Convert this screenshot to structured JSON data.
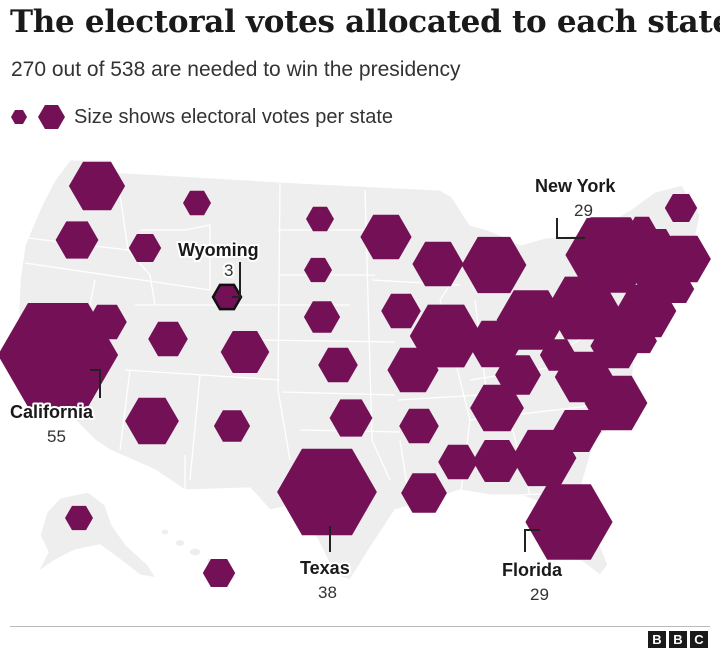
{
  "title": "The electoral votes allocated to each state",
  "subtitle": "270 out of 538 are needed to win the presidency",
  "legend": {
    "text": "Size shows electoral votes per state",
    "hex_color": "#741156",
    "outline_color": "#111111"
  },
  "map": {
    "land_color": "#eeeeee",
    "border_color": "#ffffff",
    "electoral_votes": {
      "WA": 12,
      "OR": 7,
      "CA": 55,
      "NV": 6,
      "ID": 4,
      "MT": 3,
      "WY": 3,
      "UT": 6,
      "AZ": 11,
      "CO": 9,
      "NM": 5,
      "TX": 38,
      "ND": 3,
      "SD": 3,
      "NE": 5,
      "KS": 6,
      "OK": 7,
      "MN": 10,
      "IA": 6,
      "MO": 10,
      "AR": 6,
      "LA": 8,
      "WI": 10,
      "IL": 20,
      "MS": 6,
      "MI": 16,
      "IN": 11,
      "KY": 8,
      "TN": 11,
      "AL": 9,
      "OH": 18,
      "WV": 5,
      "GA": 16,
      "FL": 29,
      "SC": 9,
      "NC": 15,
      "VA": 13,
      "PA": 20,
      "NY": 29,
      "ME": 4,
      "NH": 4,
      "VT": 3,
      "MA": 11,
      "RI": 4,
      "CT": 7,
      "NJ": 14,
      "DE": 3,
      "MD": 10,
      "DC": 3,
      "AK": 3,
      "HI": 4
    }
  },
  "callouts": {
    "california": {
      "name": "California",
      "votes": "55"
    },
    "wyoming": {
      "name": "Wyoming",
      "votes": "3"
    },
    "new_york": {
      "name": "New York",
      "votes": "29"
    },
    "texas": {
      "name": "Texas",
      "votes": "38"
    },
    "florida": {
      "name": "Florida",
      "votes": "29"
    }
  },
  "footer": {
    "logo": [
      "B",
      "B",
      "C"
    ]
  }
}
